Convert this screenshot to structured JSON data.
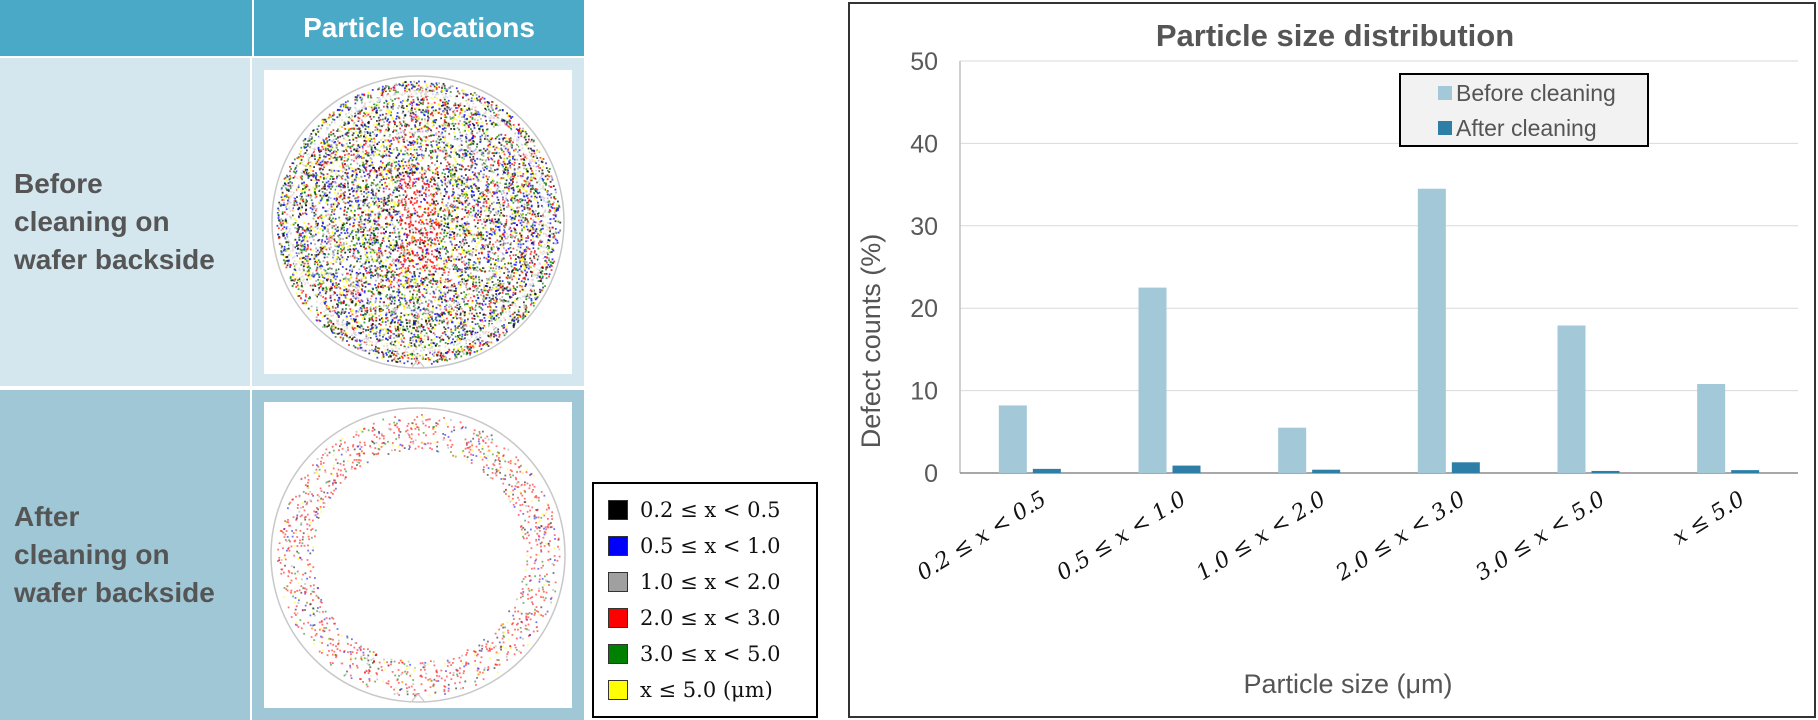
{
  "table": {
    "header": "Particle locations",
    "rows": [
      {
        "label_lines": [
          "Before",
          "cleaning on",
          "wafer backside"
        ]
      },
      {
        "label_lines": [
          "After",
          "cleaning on",
          "wafer backside"
        ]
      }
    ]
  },
  "size_legend": [
    {
      "label": "0.2 ≤ x < 0.5",
      "color": "#000000"
    },
    {
      "label": "0.5 ≤ x < 1.0",
      "color": "#0000ff"
    },
    {
      "label": "1.0 ≤ x < 2.0",
      "color": "#a0a0a0"
    },
    {
      "label": "2.0 ≤ x < 3.0",
      "color": "#ff0000"
    },
    {
      "label": "3.0 ≤ x < 5.0",
      "color": "#008000"
    },
    {
      "label": "x ≤ 5.0 (μm)",
      "color": "#ffff00"
    }
  ],
  "chart_data": {
    "type": "bar",
    "title": "Particle size distribution",
    "xlabel": "Particle size (μm)",
    "ylabel": "Defect counts (%)",
    "ylim": [
      0,
      50
    ],
    "yticks": [
      0,
      10,
      20,
      30,
      40,
      50
    ],
    "grid": true,
    "legend_position": "top-right",
    "categories": [
      "0.2 ≤ x < 0.5",
      "0.5 ≤ x < 1.0",
      "1.0 ≤ x < 2.0",
      "2.0 ≤ x < 3.0",
      "3.0 ≤ x < 5.0",
      "x ≤ 5.0"
    ],
    "series": [
      {
        "name": "Before cleaning",
        "color": "#a3c8d8",
        "values": [
          8.2,
          22.5,
          5.5,
          34.5,
          17.9,
          10.8
        ]
      },
      {
        "name": "After cleaning",
        "color": "#2e7fa8",
        "values": [
          0.5,
          0.9,
          0.4,
          1.3,
          0.25,
          0.35
        ]
      }
    ]
  }
}
